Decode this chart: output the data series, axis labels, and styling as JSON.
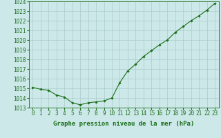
{
  "x": [
    0,
    1,
    2,
    3,
    4,
    5,
    6,
    7,
    8,
    9,
    10,
    11,
    12,
    13,
    14,
    15,
    16,
    17,
    18,
    19,
    20,
    21,
    22,
    23
  ],
  "y": [
    1015.1,
    1014.9,
    1014.8,
    1014.3,
    1014.1,
    1013.5,
    1013.3,
    1013.5,
    1013.6,
    1013.7,
    1014.0,
    1015.6,
    1016.8,
    1017.5,
    1018.3,
    1018.9,
    1019.5,
    1020.0,
    1020.8,
    1021.4,
    1022.0,
    1022.5,
    1023.1,
    1023.8
  ],
  "line_color": "#1a6e1a",
  "marker_color": "#1a6e1a",
  "bg_color": "#cce8e8",
  "grid_color": "#aacccc",
  "xlabel": "Graphe pression niveau de la mer (hPa)",
  "xlabel_fontsize": 6.5,
  "tick_fontsize": 5.5,
  "ylim": [
    1013,
    1024
  ],
  "xlim": [
    -0.5,
    23.5
  ],
  "yticks": [
    1013,
    1014,
    1015,
    1016,
    1017,
    1018,
    1019,
    1020,
    1021,
    1022,
    1023,
    1024
  ],
  "xticks": [
    0,
    1,
    2,
    3,
    4,
    5,
    6,
    7,
    8,
    9,
    10,
    11,
    12,
    13,
    14,
    15,
    16,
    17,
    18,
    19,
    20,
    21,
    22,
    23
  ]
}
